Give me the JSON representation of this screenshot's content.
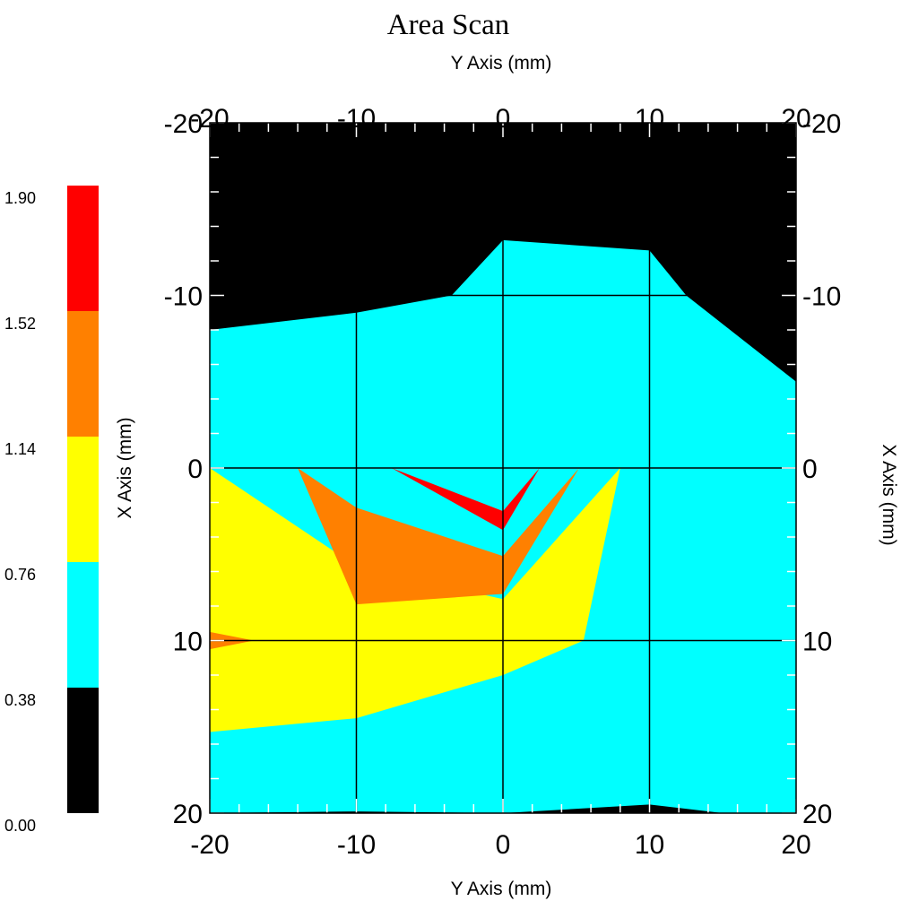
{
  "chart_data": {
    "type": "heatmap",
    "title": "Area Scan",
    "xlabel": "Y Axis (mm)",
    "ylabel": "X Axis (mm)",
    "xlim": [
      -20,
      20
    ],
    "ylim": [
      -20,
      20
    ],
    "y_inverted": true,
    "x_ticks": [
      -20,
      -10,
      0,
      10,
      20
    ],
    "y_ticks": [
      -20,
      -10,
      0,
      10,
      20
    ],
    "grid": true,
    "colorbar": {
      "levels": [
        "0.00",
        "0.38",
        "0.76",
        "1.14",
        "1.52",
        "1.90"
      ],
      "colors": [
        "#000000",
        "#00ffff",
        "#ffff00",
        "#ff8000",
        "#ff0000"
      ]
    },
    "contours": [
      {
        "band": "0.38-0.76",
        "color": "#00ffff",
        "points": [
          [
            -20,
            -8
          ],
          [
            -10,
            -9
          ],
          [
            -3.5,
            -10
          ],
          [
            0,
            -13.2
          ],
          [
            10,
            -12.6
          ],
          [
            12.5,
            -10
          ],
          [
            20,
            -5
          ]
        ]
      },
      {
        "band": "0.76-1.14",
        "color": "#ffff00",
        "points": [
          [
            -20,
            0
          ],
          [
            -10,
            5.7
          ],
          [
            0,
            7.6
          ],
          [
            8,
            0
          ],
          [
            5.5,
            10
          ],
          [
            0,
            12
          ],
          [
            -10,
            14.5
          ],
          [
            -20,
            15.3
          ]
        ]
      },
      {
        "band": "1.14-1.52",
        "color": "#ff8000",
        "points": [
          [
            -14,
            0
          ],
          [
            -10,
            2.3
          ],
          [
            0,
            5.1
          ],
          [
            5.2,
            0
          ],
          [
            0,
            7.3
          ],
          [
            -10,
            7.9
          ]
        ]
      },
      {
        "band": "1.52-1.90",
        "color": "#ff0000",
        "points": [
          [
            -7.6,
            0
          ],
          [
            0,
            2.5
          ],
          [
            2.5,
            0
          ],
          [
            0,
            3.6
          ]
        ]
      },
      {
        "band": "1.14-1.52",
        "color": "#ff8000",
        "points": [
          [
            -20,
            9.5
          ],
          [
            -17,
            10
          ],
          [
            -20,
            10.5
          ]
        ]
      },
      {
        "band": "0.00-0.38",
        "color": "#000000",
        "points": [
          [
            -20,
            20
          ],
          [
            -10,
            19.9
          ],
          [
            0,
            20
          ],
          [
            10,
            19.5
          ],
          [
            15,
            20
          ]
        ]
      }
    ]
  }
}
